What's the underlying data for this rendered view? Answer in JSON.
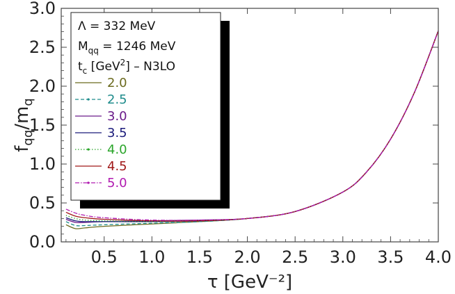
{
  "chart_data": {
    "type": "line",
    "xlabel": "τ [GeV⁻²]",
    "ylabel": "f_qq/m_q",
    "xlim": [
      0.05,
      4.0
    ],
    "ylim": [
      0.0,
      3.0
    ],
    "xticks": [
      "0.5",
      "1.0",
      "1.5",
      "2.0",
      "2.5",
      "3.0",
      "3.5",
      "4.0"
    ],
    "yticks": [
      "0.0",
      "0.5",
      "1.0",
      "1.5",
      "2.0",
      "2.5",
      "3.0"
    ],
    "legend": {
      "line1": "Λ = 332 MeV",
      "line2_main": "M",
      "line2_sub": "qq",
      "line2_rest": " = 1246 MeV",
      "line3_main": "t",
      "line3_sub": "c",
      "line3_a": " [GeV",
      "line3_sup": "2",
      "line3_b": "] – N3LO"
    },
    "series": [
      {
        "name": "2.0",
        "color": "#6b6a1e",
        "style": "solid",
        "x": [
          0.1,
          0.2,
          0.3,
          0.5,
          1.0,
          1.5,
          2.0,
          2.5,
          3.0,
          3.25,
          3.5,
          3.75,
          4.0
        ],
        "y": [
          0.22,
          0.17,
          0.18,
          0.2,
          0.23,
          0.26,
          0.3,
          0.39,
          0.64,
          0.9,
          1.32,
          1.92,
          2.71
        ]
      },
      {
        "name": "2.5",
        "color": "#1f8c8c",
        "style": "dashed",
        "x": [
          0.1,
          0.2,
          0.3,
          0.5,
          1.0,
          1.5,
          2.0,
          2.5,
          3.0,
          3.25,
          3.5,
          3.75,
          4.0
        ],
        "y": [
          0.26,
          0.21,
          0.21,
          0.22,
          0.24,
          0.26,
          0.3,
          0.39,
          0.64,
          0.9,
          1.32,
          1.92,
          2.71
        ]
      },
      {
        "name": "3.0",
        "color": "#6a1a8a",
        "style": "solid",
        "x": [
          0.1,
          0.2,
          0.3,
          0.5,
          1.0,
          1.5,
          2.0,
          2.5,
          3.0,
          3.25,
          3.5,
          3.75,
          4.0
        ],
        "y": [
          0.29,
          0.25,
          0.25,
          0.26,
          0.27,
          0.28,
          0.3,
          0.39,
          0.64,
          0.9,
          1.32,
          1.92,
          2.71
        ]
      },
      {
        "name": "3.5",
        "color": "#1a1a7a",
        "style": "solid",
        "x": [
          0.1,
          0.2,
          0.3,
          0.5,
          1.0,
          1.5,
          2.0,
          2.5,
          3.0,
          3.25,
          3.5,
          3.75,
          4.0
        ],
        "y": [
          0.31,
          0.27,
          0.26,
          0.26,
          0.26,
          0.27,
          0.3,
          0.39,
          0.64,
          0.9,
          1.32,
          1.92,
          2.71
        ]
      },
      {
        "name": "4.0",
        "color": "#2aa52a",
        "style": "dotted",
        "x": [
          0.1,
          0.2,
          0.3,
          0.5,
          1.0,
          1.5,
          2.0,
          2.5,
          3.0,
          3.25,
          3.5,
          3.75,
          4.0
        ],
        "y": [
          0.34,
          0.3,
          0.28,
          0.27,
          0.26,
          0.27,
          0.3,
          0.39,
          0.64,
          0.9,
          1.32,
          1.92,
          2.71
        ]
      },
      {
        "name": "4.5",
        "color": "#a01818",
        "style": "solid",
        "x": [
          0.1,
          0.2,
          0.3,
          0.5,
          1.0,
          1.5,
          2.0,
          2.5,
          3.0,
          3.25,
          3.5,
          3.75,
          4.0
        ],
        "y": [
          0.38,
          0.33,
          0.31,
          0.29,
          0.27,
          0.27,
          0.3,
          0.39,
          0.64,
          0.9,
          1.32,
          1.92,
          2.71
        ]
      },
      {
        "name": "5.0",
        "color": "#b01ab0",
        "style": "dashdot",
        "x": [
          0.1,
          0.2,
          0.3,
          0.5,
          1.0,
          1.5,
          2.0,
          2.5,
          3.0,
          3.25,
          3.5,
          3.75,
          4.0
        ],
        "y": [
          0.42,
          0.37,
          0.34,
          0.31,
          0.28,
          0.28,
          0.3,
          0.39,
          0.64,
          0.9,
          1.32,
          1.92,
          2.71
        ]
      }
    ]
  }
}
